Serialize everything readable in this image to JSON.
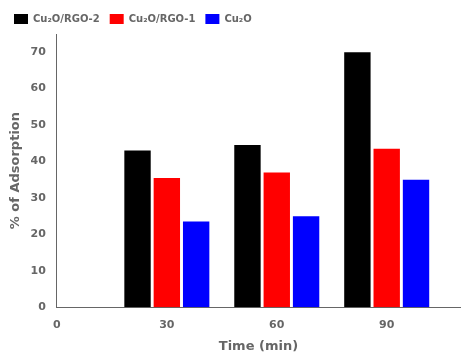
{
  "chart_data": {
    "type": "bar",
    "x": [
      30,
      60,
      90
    ],
    "series": [
      {
        "name": "Cu₂O/RGO-2",
        "color": "#000000",
        "values": [
          43,
          44.5,
          70
        ]
      },
      {
        "name": "Cu₂O/RGO-1",
        "color": "#ff0000",
        "values": [
          35.5,
          37,
          43.5
        ]
      },
      {
        "name": "Cu₂O",
        "color": "#0000ff",
        "values": [
          23.5,
          25,
          35
        ]
      }
    ],
    "xlabel": "Time (min)",
    "ylabel": "% of Adsorption",
    "xlim": [
      0,
      110
    ],
    "xticks": [
      0,
      30,
      60,
      90
    ],
    "ylim": [
      0,
      75
    ],
    "yticks": [
      0,
      10,
      20,
      30,
      40,
      50,
      60,
      70
    ],
    "grid": false,
    "legend": "upper left"
  }
}
